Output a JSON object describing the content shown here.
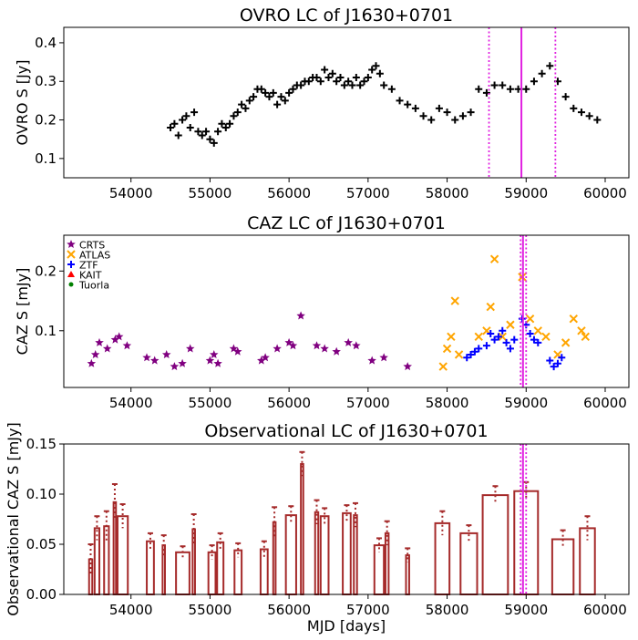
{
  "chart_data": [
    {
      "type": "scatter",
      "title": "OVRO LC of J1630+0701",
      "xlabel": "",
      "ylabel": "OVRO S [Jy]",
      "xlim": [
        53150,
        60300
      ],
      "ylim": [
        0.05,
        0.44
      ],
      "xticks": [
        54000,
        55000,
        56000,
        57000,
        58000,
        59000,
        60000
      ],
      "xtick_labels": [
        "54000",
        "55000",
        "56000",
        "57000",
        "58000",
        "59000",
        "60000"
      ],
      "yticks": [
        0.1,
        0.2,
        0.3,
        0.4
      ],
      "ytick_labels": [
        "0.1",
        "0.2",
        "0.3",
        "0.4"
      ],
      "vlines": [
        {
          "x": 58530,
          "style": "dotted",
          "color": "#e020e0"
        },
        {
          "x": 58940,
          "style": "solid",
          "color": "#e020e0"
        },
        {
          "x": 59370,
          "style": "dotted",
          "color": "#e020e0"
        }
      ],
      "series": [
        {
          "name": "OVRO",
          "color": "#000000",
          "marker": "plus",
          "points": [
            [
              54500,
              0.18
            ],
            [
              54550,
              0.19
            ],
            [
              54600,
              0.16
            ],
            [
              54650,
              0.2
            ],
            [
              54700,
              0.21
            ],
            [
              54750,
              0.18
            ],
            [
              54800,
              0.22
            ],
            [
              54850,
              0.17
            ],
            [
              54900,
              0.16
            ],
            [
              54950,
              0.17
            ],
            [
              55000,
              0.15
            ],
            [
              55050,
              0.14
            ],
            [
              55100,
              0.17
            ],
            [
              55150,
              0.19
            ],
            [
              55200,
              0.18
            ],
            [
              55250,
              0.19
            ],
            [
              55300,
              0.21
            ],
            [
              55350,
              0.22
            ],
            [
              55400,
              0.24
            ],
            [
              55450,
              0.23
            ],
            [
              55500,
              0.25
            ],
            [
              55550,
              0.26
            ],
            [
              55600,
              0.28
            ],
            [
              55650,
              0.28
            ],
            [
              55700,
              0.27
            ],
            [
              55750,
              0.26
            ],
            [
              55800,
              0.27
            ],
            [
              55850,
              0.24
            ],
            [
              55900,
              0.26
            ],
            [
              55950,
              0.25
            ],
            [
              56000,
              0.27
            ],
            [
              56050,
              0.28
            ],
            [
              56100,
              0.29
            ],
            [
              56150,
              0.29
            ],
            [
              56200,
              0.3
            ],
            [
              56250,
              0.3
            ],
            [
              56300,
              0.31
            ],
            [
              56350,
              0.31
            ],
            [
              56400,
              0.3
            ],
            [
              56450,
              0.33
            ],
            [
              56500,
              0.31
            ],
            [
              56550,
              0.32
            ],
            [
              56600,
              0.3
            ],
            [
              56650,
              0.31
            ],
            [
              56700,
              0.29
            ],
            [
              56750,
              0.3
            ],
            [
              56800,
              0.29
            ],
            [
              56850,
              0.31
            ],
            [
              56900,
              0.29
            ],
            [
              56950,
              0.3
            ],
            [
              57000,
              0.31
            ],
            [
              57050,
              0.33
            ],
            [
              57100,
              0.34
            ],
            [
              57150,
              0.32
            ],
            [
              57200,
              0.29
            ],
            [
              57300,
              0.28
            ],
            [
              57400,
              0.25
            ],
            [
              57500,
              0.24
            ],
            [
              57600,
              0.23
            ],
            [
              57700,
              0.21
            ],
            [
              57800,
              0.2
            ],
            [
              57900,
              0.23
            ],
            [
              58000,
              0.22
            ],
            [
              58100,
              0.2
            ],
            [
              58200,
              0.21
            ],
            [
              58300,
              0.22
            ],
            [
              58400,
              0.28
            ],
            [
              58500,
              0.27
            ],
            [
              58600,
              0.29
            ],
            [
              58700,
              0.29
            ],
            [
              58800,
              0.28
            ],
            [
              58900,
              0.28
            ],
            [
              59000,
              0.28
            ],
            [
              59100,
              0.3
            ],
            [
              59200,
              0.32
            ],
            [
              59300,
              0.34
            ],
            [
              59400,
              0.3
            ],
            [
              59500,
              0.26
            ],
            [
              59600,
              0.23
            ],
            [
              59700,
              0.22
            ],
            [
              59800,
              0.21
            ],
            [
              59900,
              0.2
            ]
          ]
        }
      ]
    },
    {
      "type": "scatter",
      "title": "CAZ LC of J1630+0701",
      "xlabel": "",
      "ylabel": "CAZ S [mJy]",
      "xlim": [
        53150,
        60300
      ],
      "ylim": [
        0.005,
        0.26
      ],
      "xticks": [
        54000,
        55000,
        56000,
        57000,
        58000,
        59000,
        60000
      ],
      "xtick_labels": [
        "54000",
        "55000",
        "56000",
        "57000",
        "58000",
        "59000",
        "60000"
      ],
      "yticks": [
        0.1,
        0.2
      ],
      "ytick_labels": [
        "0.1",
        "0.2"
      ],
      "vlines": [
        {
          "x": 58930,
          "style": "dotted",
          "color": "#e020e0"
        },
        {
          "x": 58960,
          "style": "solid",
          "color": "#e020e0"
        },
        {
          "x": 59000,
          "style": "dotted",
          "color": "#e020e0"
        }
      ],
      "legend": {
        "position": "top-left",
        "entries": [
          {
            "label": "CRTS",
            "marker": "star",
            "color": "#800080"
          },
          {
            "label": "ATLAS",
            "marker": "x",
            "color": "#ffa500"
          },
          {
            "label": "ZTF",
            "marker": "plus",
            "color": "#0000ff"
          },
          {
            "label": "KAIT",
            "marker": "triangle",
            "color": "#ff0000"
          },
          {
            "label": "Tuorla",
            "marker": "circle",
            "color": "#008000"
          }
        ]
      },
      "series": [
        {
          "name": "CRTS",
          "color": "#800080",
          "marker": "star",
          "points": [
            [
              53500,
              0.045
            ],
            [
              53550,
              0.06
            ],
            [
              53600,
              0.08
            ],
            [
              53700,
              0.07
            ],
            [
              53800,
              0.085
            ],
            [
              53850,
              0.09
            ],
            [
              53950,
              0.075
            ],
            [
              54200,
              0.055
            ],
            [
              54300,
              0.05
            ],
            [
              54450,
              0.06
            ],
            [
              54550,
              0.04
            ],
            [
              54650,
              0.045
            ],
            [
              54750,
              0.07
            ],
            [
              55000,
              0.05
            ],
            [
              55050,
              0.06
            ],
            [
              55100,
              0.045
            ],
            [
              55300,
              0.07
            ],
            [
              55350,
              0.065
            ],
            [
              55650,
              0.05
            ],
            [
              55700,
              0.055
            ],
            [
              55850,
              0.07
            ],
            [
              56000,
              0.08
            ],
            [
              56050,
              0.075
            ],
            [
              56150,
              0.125
            ],
            [
              56350,
              0.075
            ],
            [
              56450,
              0.07
            ],
            [
              56600,
              0.065
            ],
            [
              56750,
              0.08
            ],
            [
              56850,
              0.075
            ],
            [
              57050,
              0.05
            ],
            [
              57200,
              0.055
            ],
            [
              57500,
              0.04
            ]
          ]
        },
        {
          "name": "ATLAS",
          "color": "#ffa500",
          "marker": "x",
          "points": [
            [
              57950,
              0.04
            ],
            [
              58000,
              0.07
            ],
            [
              58050,
              0.09
            ],
            [
              58100,
              0.15
            ],
            [
              58150,
              0.06
            ],
            [
              58400,
              0.09
            ],
            [
              58500,
              0.1
            ],
            [
              58550,
              0.14
            ],
            [
              58600,
              0.22
            ],
            [
              58700,
              0.09
            ],
            [
              58800,
              0.11
            ],
            [
              58950,
              0.19
            ],
            [
              59050,
              0.12
            ],
            [
              59150,
              0.1
            ],
            [
              59250,
              0.09
            ],
            [
              59400,
              0.06
            ],
            [
              59500,
              0.08
            ],
            [
              59600,
              0.12
            ],
            [
              59700,
              0.1
            ],
            [
              59750,
              0.09
            ]
          ]
        },
        {
          "name": "ZTF",
          "color": "#0000ff",
          "marker": "plus",
          "points": [
            [
              58250,
              0.055
            ],
            [
              58300,
              0.06
            ],
            [
              58350,
              0.065
            ],
            [
              58400,
              0.07
            ],
            [
              58500,
              0.075
            ],
            [
              58550,
              0.095
            ],
            [
              58600,
              0.085
            ],
            [
              58650,
              0.09
            ],
            [
              58700,
              0.1
            ],
            [
              58750,
              0.08
            ],
            [
              58800,
              0.07
            ],
            [
              58850,
              0.085
            ],
            [
              58950,
              0.12
            ],
            [
              59000,
              0.11
            ],
            [
              59050,
              0.095
            ],
            [
              59100,
              0.085
            ],
            [
              59150,
              0.08
            ],
            [
              59300,
              0.05
            ],
            [
              59350,
              0.04
            ],
            [
              59400,
              0.045
            ],
            [
              59450,
              0.055
            ]
          ]
        },
        {
          "name": "KAIT",
          "color": "#ff0000",
          "marker": "triangle",
          "points": []
        },
        {
          "name": "Tuorla",
          "color": "#008000",
          "marker": "circle",
          "points": []
        }
      ]
    },
    {
      "type": "bar",
      "title": "Observational LC of J1630+0701",
      "xlabel": "MJD [days]",
      "ylabel": "Observational CAZ S [mJy]",
      "xlim": [
        53150,
        60300
      ],
      "ylim": [
        0.0,
        0.15
      ],
      "xticks": [
        54000,
        55000,
        56000,
        57000,
        58000,
        59000,
        60000
      ],
      "xtick_labels": [
        "54000",
        "55000",
        "56000",
        "57000",
        "58000",
        "59000",
        "60000"
      ],
      "yticks": [
        0.0,
        0.05,
        0.1,
        0.15
      ],
      "ytick_labels": [
        "0.00",
        "0.05",
        "0.10",
        "0.15"
      ],
      "vlines": [
        {
          "x": 58930,
          "style": "dotted",
          "color": "#e020e0"
        },
        {
          "x": 58960,
          "style": "solid",
          "color": "#e020e0"
        },
        {
          "x": 59000,
          "style": "dotted",
          "color": "#e020e0"
        }
      ],
      "bar_color": "#a52a2a",
      "bins": [
        {
          "x0": 53470,
          "x1": 53510,
          "value": 0.035,
          "err": 0.015
        },
        {
          "x0": 53540,
          "x1": 53600,
          "value": 0.066,
          "err": 0.012
        },
        {
          "x0": 53660,
          "x1": 53720,
          "value": 0.068,
          "err": 0.015
        },
        {
          "x0": 53780,
          "x1": 53810,
          "value": 0.092,
          "err": 0.018
        },
        {
          "x0": 53830,
          "x1": 53960,
          "value": 0.078,
          "err": 0.012
        },
        {
          "x0": 54200,
          "x1": 54290,
          "value": 0.053,
          "err": 0.008
        },
        {
          "x0": 54400,
          "x1": 54430,
          "value": 0.049,
          "err": 0.01
        },
        {
          "x0": 54570,
          "x1": 54740,
          "value": 0.042,
          "err": 0.006
        },
        {
          "x0": 54780,
          "x1": 54810,
          "value": 0.065,
          "err": 0.015
        },
        {
          "x0": 54980,
          "x1": 55070,
          "value": 0.042,
          "err": 0.007
        },
        {
          "x0": 55090,
          "x1": 55170,
          "value": 0.052,
          "err": 0.009
        },
        {
          "x0": 55310,
          "x1": 55400,
          "value": 0.044,
          "err": 0.007
        },
        {
          "x0": 55640,
          "x1": 55730,
          "value": 0.045,
          "err": 0.008
        },
        {
          "x0": 55800,
          "x1": 55830,
          "value": 0.072,
          "err": 0.015
        },
        {
          "x0": 55960,
          "x1": 56090,
          "value": 0.079,
          "err": 0.009
        },
        {
          "x0": 56150,
          "x1": 56180,
          "value": 0.13,
          "err": 0.012
        },
        {
          "x0": 56330,
          "x1": 56370,
          "value": 0.082,
          "err": 0.012
        },
        {
          "x0": 56400,
          "x1": 56500,
          "value": 0.078,
          "err": 0.008
        },
        {
          "x0": 56680,
          "x1": 56780,
          "value": 0.081,
          "err": 0.008
        },
        {
          "x0": 56820,
          "x1": 56860,
          "value": 0.079,
          "err": 0.012
        },
        {
          "x0": 57080,
          "x1": 57200,
          "value": 0.049,
          "err": 0.007
        },
        {
          "x0": 57220,
          "x1": 57260,
          "value": 0.061,
          "err": 0.012
        },
        {
          "x0": 57480,
          "x1": 57520,
          "value": 0.039,
          "err": 0.007
        },
        {
          "x0": 57850,
          "x1": 58030,
          "value": 0.071,
          "err": 0.012
        },
        {
          "x0": 58170,
          "x1": 58380,
          "value": 0.061,
          "err": 0.008
        },
        {
          "x0": 58450,
          "x1": 58770,
          "value": 0.099,
          "err": 0.009
        },
        {
          "x0": 58850,
          "x1": 59150,
          "value": 0.103,
          "err": 0.009
        },
        {
          "x0": 59330,
          "x1": 59600,
          "value": 0.055,
          "err": 0.009
        },
        {
          "x0": 59680,
          "x1": 59870,
          "value": 0.066,
          "err": 0.012
        }
      ]
    }
  ]
}
